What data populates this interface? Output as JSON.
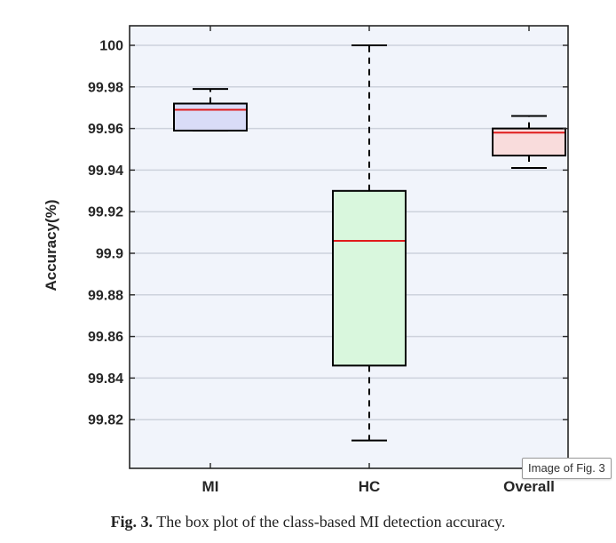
{
  "chart_data": {
    "type": "boxplot",
    "ylabel": "Accuracy(%)",
    "xlabel": "",
    "ylim": [
      99.8,
      100.0
    ],
    "yticks": [
      99.82,
      99.84,
      99.86,
      99.88,
      99.9,
      99.92,
      99.94,
      99.96,
      99.98,
      100
    ],
    "ytick_labels": [
      "99.82",
      "99.84",
      "99.86",
      "99.88",
      "99.9",
      "99.92",
      "99.94",
      "99.96",
      "99.98",
      "100"
    ],
    "grid": true,
    "categories": [
      "MI",
      "HC",
      "Overall"
    ],
    "boxes": [
      {
        "label": "MI",
        "whisker_low": 99.959,
        "q1": 99.959,
        "median": 99.969,
        "q3": 99.972,
        "whisker_high": 99.979,
        "fill": "#d9dcf7"
      },
      {
        "label": "HC",
        "whisker_low": 99.81,
        "q1": 99.846,
        "median": 99.906,
        "q3": 99.93,
        "whisker_high": 100.0,
        "fill": "#d9f7dd"
      },
      {
        "label": "Overall",
        "whisker_low": 99.941,
        "q1": 99.947,
        "median": 99.958,
        "q3": 99.96,
        "whisker_high": 99.966,
        "fill": "#f9dcdc"
      }
    ],
    "colors": {
      "median": "#e01b1b",
      "box_edge": "#000000",
      "plot_background": "#f1f4fb",
      "grid": "#cdd2dc"
    }
  },
  "badge": {
    "text": "Image of Fig. 3"
  },
  "caption": {
    "label": "Fig. 3.",
    "text": "The box plot of the class-based MI detection accuracy."
  }
}
